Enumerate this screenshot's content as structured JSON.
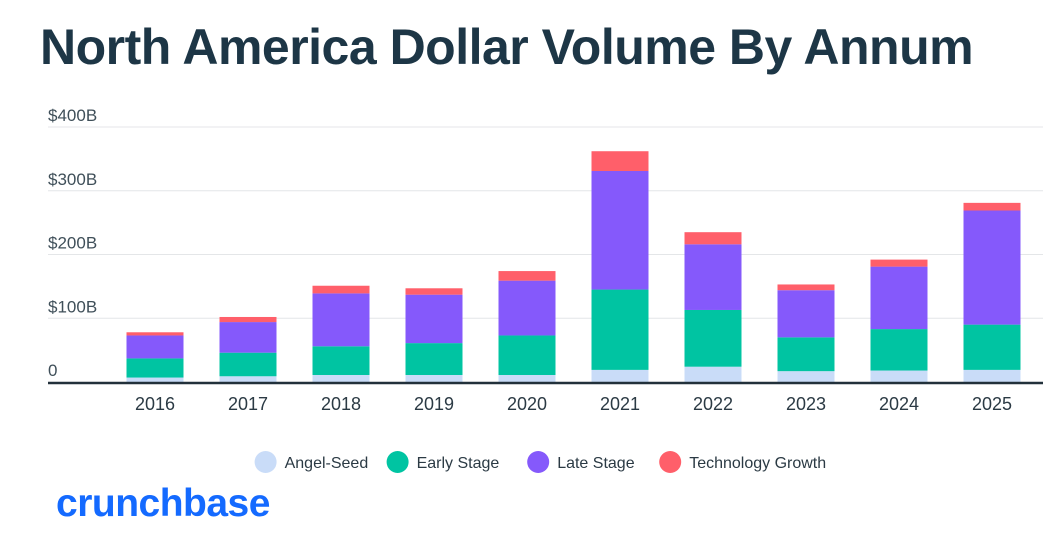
{
  "chart_data": {
    "type": "bar",
    "stacked": true,
    "title": "North America Dollar Volume By Annum",
    "xlabel": "",
    "ylabel": "",
    "ylim": [
      0,
      400
    ],
    "yticks": [
      {
        "value": 0,
        "label": "0"
      },
      {
        "value": 100,
        "label": "$100B"
      },
      {
        "value": 200,
        "label": "$200B"
      },
      {
        "value": 300,
        "label": "$300B"
      },
      {
        "value": 400,
        "label": "$400B"
      }
    ],
    "grid": true,
    "legend_position": "bottom",
    "categories": [
      "2016",
      "2017",
      "2018",
      "2019",
      "2020",
      "2021",
      "2022",
      "2023",
      "2024",
      "2025"
    ],
    "series": [
      {
        "name": "Angel-Seed",
        "color": "#c9dcf8",
        "values": [
          7,
          9,
          11,
          11,
          11,
          19,
          24,
          17,
          18,
          19
        ]
      },
      {
        "name": "Early Stage",
        "color": "#00c4a2",
        "values": [
          30,
          37,
          45,
          50,
          62,
          126,
          89,
          53,
          65,
          71
        ]
      },
      {
        "name": "Late Stage",
        "color": "#8559fb",
        "values": [
          36,
          48,
          83,
          76,
          86,
          186,
          103,
          74,
          98,
          179
        ]
      },
      {
        "name": "Technology Growth",
        "color": "#ff5f6a",
        "values": [
          5,
          8,
          12,
          10,
          15,
          31,
          19,
          9,
          11,
          12
        ]
      }
    ]
  },
  "brand": {
    "logo_text": "crunchbase"
  }
}
